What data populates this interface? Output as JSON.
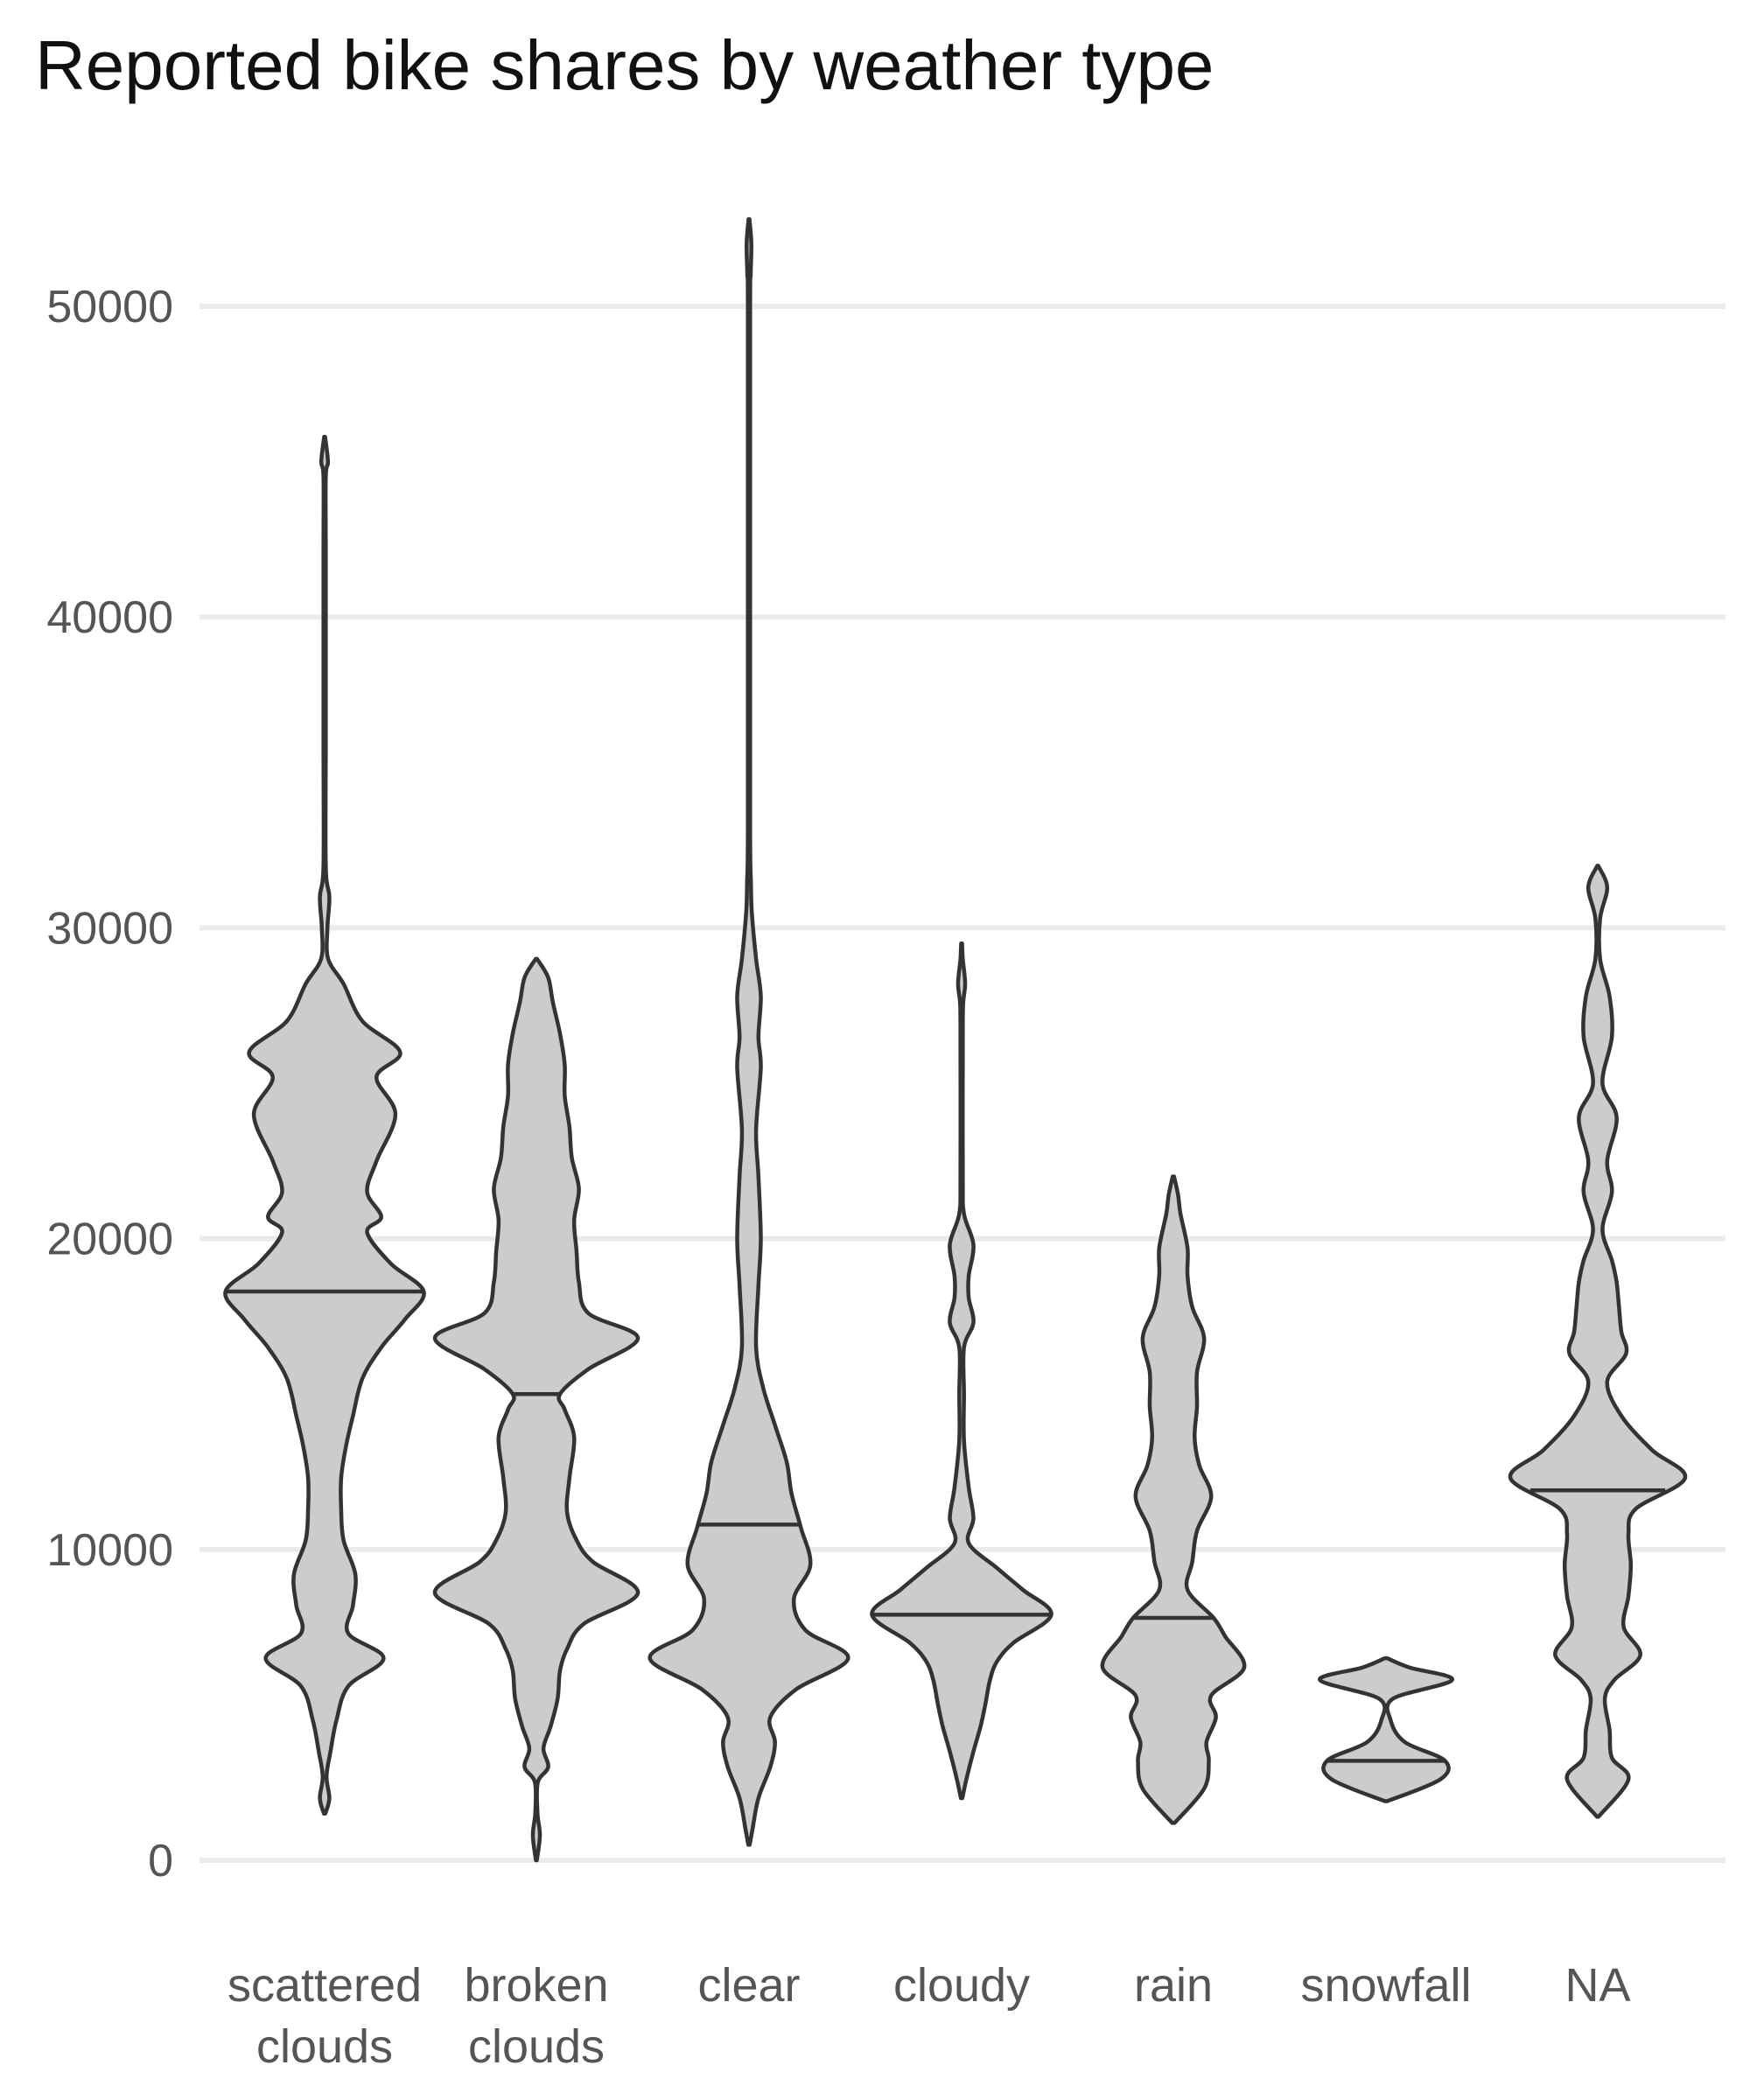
{
  "chart_data": {
    "type": "violin",
    "title": "Reported bike shares by weather type",
    "xlabel": "",
    "ylabel": "",
    "ylim": [
      0,
      54000
    ],
    "yticks": [
      0,
      10000,
      20000,
      30000,
      40000,
      50000
    ],
    "grid": "horizontal",
    "legend": "none",
    "fill_color": "#cccccc",
    "line_color": "#333333",
    "categories": [
      [
        "scattered",
        "clouds"
      ],
      [
        "broken",
        "clouds"
      ],
      [
        "clear"
      ],
      [
        "cloudy"
      ],
      [
        "rain"
      ],
      [
        "snowfall"
      ],
      [
        "NA"
      ]
    ],
    "series": [
      {
        "min": 1500,
        "max": 45800,
        "median": 18300,
        "density": [
          [
            1500,
            0.3
          ],
          [
            2000,
            2
          ],
          [
            2700,
            0.8
          ],
          [
            3500,
            2.5
          ],
          [
            4500,
            5
          ],
          [
            5600,
            10
          ],
          [
            6500,
            25
          ],
          [
            7300,
            10
          ],
          [
            8200,
            12
          ],
          [
            9200,
            13
          ],
          [
            10300,
            8
          ],
          [
            11300,
            7
          ],
          [
            12300,
            7
          ],
          [
            13300,
            9
          ],
          [
            14300,
            12
          ],
          [
            15500,
            16
          ],
          [
            16500,
            24
          ],
          [
            17400,
            34
          ],
          [
            18300,
            42
          ],
          [
            19200,
            28
          ],
          [
            20200,
            18
          ],
          [
            20700,
            24
          ],
          [
            21500,
            18
          ],
          [
            22500,
            22
          ],
          [
            24000,
            30
          ],
          [
            25200,
            22
          ],
          [
            26000,
            32
          ],
          [
            27000,
            16
          ],
          [
            28200,
            8
          ],
          [
            29000,
            1.5
          ],
          [
            30000,
            1.2
          ],
          [
            31000,
            2
          ],
          [
            32000,
            0.5
          ],
          [
            36000,
            0.5
          ],
          [
            42000,
            0.5
          ],
          [
            44500,
            0.5
          ],
          [
            45000,
            1.4
          ],
          [
            45800,
            0.2
          ]
        ]
      },
      {
        "min": 0,
        "max": 29000,
        "median": 15000,
        "density": [
          [
            0,
            0.2
          ],
          [
            800,
            1.5
          ],
          [
            1500,
            0.5
          ],
          [
            2500,
            0.6
          ],
          [
            3000,
            5
          ],
          [
            3600,
            3
          ],
          [
            4300,
            6
          ],
          [
            5200,
            9
          ],
          [
            6100,
            10
          ],
          [
            6800,
            13
          ],
          [
            7600,
            20
          ],
          [
            8600,
            43
          ],
          [
            9600,
            24
          ],
          [
            10300,
            17
          ],
          [
            11200,
            13
          ],
          [
            12300,
            14
          ],
          [
            13600,
            16
          ],
          [
            14500,
            12
          ],
          [
            15000,
            10
          ],
          [
            15800,
            22
          ],
          [
            16800,
            43
          ],
          [
            17600,
            22
          ],
          [
            18600,
            18
          ],
          [
            19600,
            17
          ],
          [
            20600,
            16
          ],
          [
            21600,
            18
          ],
          [
            22600,
            15
          ],
          [
            23600,
            14
          ],
          [
            24600,
            12
          ],
          [
            25600,
            12
          ],
          [
            26600,
            10
          ],
          [
            27600,
            7
          ],
          [
            28400,
            5
          ],
          [
            29000,
            0.3
          ]
        ]
      },
      {
        "min": 500,
        "max": 52800,
        "median": 10800,
        "density": [
          [
            500,
            0.3
          ],
          [
            1000,
            1.5
          ],
          [
            2000,
            4
          ],
          [
            3000,
            9
          ],
          [
            3800,
            11
          ],
          [
            4600,
            9
          ],
          [
            5500,
            20
          ],
          [
            6500,
            42
          ],
          [
            7400,
            24
          ],
          [
            8400,
            19
          ],
          [
            9500,
            26
          ],
          [
            10700,
            22
          ],
          [
            11800,
            18
          ],
          [
            12800,
            16
          ],
          [
            14000,
            11
          ],
          [
            15200,
            6
          ],
          [
            16500,
            3
          ],
          [
            18500,
            4
          ],
          [
            20000,
            5
          ],
          [
            22000,
            4
          ],
          [
            23500,
            3
          ],
          [
            25500,
            5
          ],
          [
            26500,
            4
          ],
          [
            27800,
            5
          ],
          [
            29000,
            3
          ],
          [
            30500,
            1.2
          ],
          [
            31500,
            0.8
          ],
          [
            33000,
            0.5
          ],
          [
            40000,
            0.5
          ],
          [
            50000,
            0.5
          ],
          [
            51000,
            0.7
          ],
          [
            52000,
            1
          ],
          [
            52800,
            0.2
          ]
        ]
      },
      {
        "min": 2000,
        "max": 29500,
        "median": 7900,
        "density": [
          [
            2000,
            0.3
          ],
          [
            2600,
            2
          ],
          [
            3500,
            5
          ],
          [
            4300,
            8
          ],
          [
            5000,
            10
          ],
          [
            5800,
            12
          ],
          [
            6400,
            15
          ],
          [
            7000,
            22
          ],
          [
            7900,
            38
          ],
          [
            8700,
            26
          ],
          [
            9400,
            15
          ],
          [
            10200,
            3
          ],
          [
            11000,
            5
          ],
          [
            12000,
            3
          ],
          [
            13500,
            1
          ],
          [
            15000,
            1
          ],
          [
            16500,
            1
          ],
          [
            17300,
            5
          ],
          [
            18100,
            3
          ],
          [
            18800,
            3
          ],
          [
            19800,
            5
          ],
          [
            20800,
            1
          ],
          [
            22000,
            0.5
          ],
          [
            26000,
            0.5
          ],
          [
            27500,
            0.6
          ],
          [
            28200,
            1.5
          ],
          [
            29000,
            0.5
          ],
          [
            29500,
            0.2
          ]
        ]
      },
      {
        "min": 1200,
        "max": 22000,
        "median": 7800,
        "density": [
          [
            1200,
            0.5
          ],
          [
            2300,
            13
          ],
          [
            3200,
            15
          ],
          [
            3800,
            14
          ],
          [
            4600,
            18
          ],
          [
            5300,
            16
          ],
          [
            6200,
            30
          ],
          [
            7200,
            22
          ],
          [
            7800,
            17
          ],
          [
            8700,
            6
          ],
          [
            9600,
            8
          ],
          [
            10600,
            10
          ],
          [
            11700,
            16
          ],
          [
            12700,
            11
          ],
          [
            13600,
            9
          ],
          [
            14600,
            10
          ],
          [
            15700,
            10
          ],
          [
            16800,
            13
          ],
          [
            17800,
            8
          ],
          [
            18800,
            6
          ],
          [
            19700,
            6
          ],
          [
            20800,
            3
          ],
          [
            21400,
            2
          ],
          [
            22000,
            0.3
          ]
        ]
      },
      {
        "min": 1900,
        "max": 6500,
        "median": 3200,
        "density": [
          [
            1900,
            0.5
          ],
          [
            2600,
            23
          ],
          [
            3200,
            25
          ],
          [
            3800,
            8
          ],
          [
            4500,
            2
          ],
          [
            5200,
            3
          ],
          [
            5800,
            28
          ],
          [
            6200,
            10
          ],
          [
            6500,
            0.5
          ]
        ]
      },
      {
        "min": 1400,
        "max": 32000,
        "median": 11900,
        "density": [
          [
            1400,
            0.3
          ],
          [
            2600,
            13
          ],
          [
            3300,
            6
          ],
          [
            4200,
            5
          ],
          [
            5200,
            3
          ],
          [
            5800,
            7
          ],
          [
            6600,
            18
          ],
          [
            7500,
            11
          ],
          [
            8500,
            13
          ],
          [
            9500,
            14
          ],
          [
            10500,
            13
          ],
          [
            11300,
            16
          ],
          [
            12300,
            37
          ],
          [
            13200,
            23
          ],
          [
            14300,
            10
          ],
          [
            15400,
            4
          ],
          [
            16300,
            12
          ],
          [
            17000,
            10
          ],
          [
            17800,
            9
          ],
          [
            18600,
            8
          ],
          [
            19300,
            6
          ],
          [
            20300,
            2
          ],
          [
            21500,
            6
          ],
          [
            22500,
            4
          ],
          [
            23900,
            8
          ],
          [
            25000,
            2
          ],
          [
            26500,
            6
          ],
          [
            27800,
            5
          ],
          [
            29000,
            1
          ],
          [
            30300,
            1
          ],
          [
            31300,
            4
          ],
          [
            32000,
            0.2
          ]
        ]
      }
    ]
  }
}
